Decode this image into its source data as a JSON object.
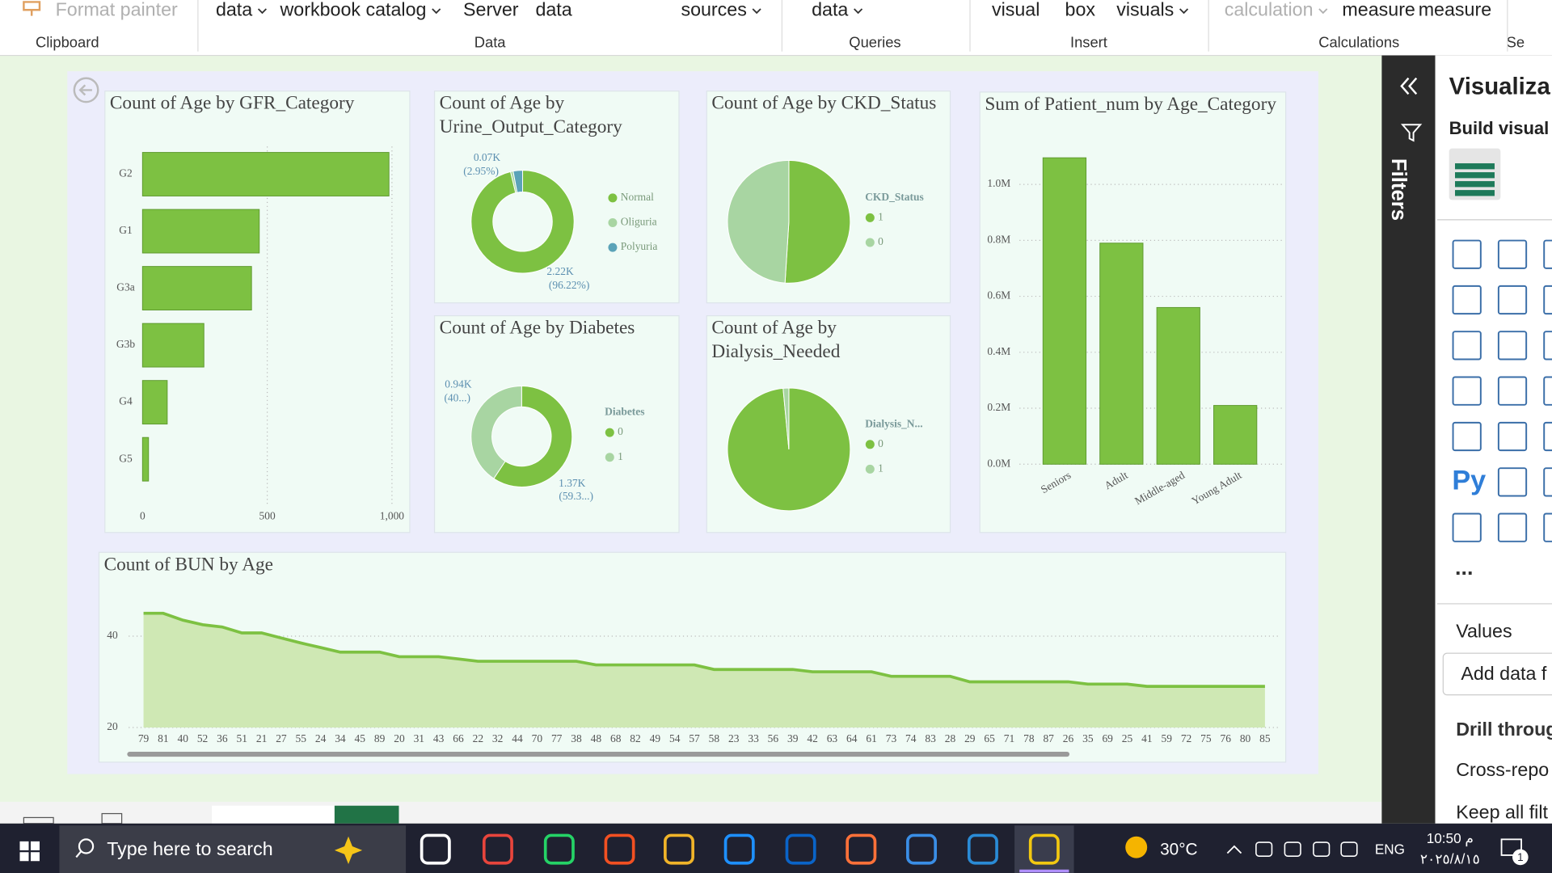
{
  "ribbon": {
    "items": [
      "Format painter",
      "data",
      "workbook catalog",
      "Server",
      "data",
      "sources",
      "data",
      "visual",
      "box",
      "visuals",
      "calculation",
      "measure",
      "measure"
    ],
    "groups": [
      "Clipboard",
      "Data",
      "Queries",
      "Insert",
      "Calculations",
      "Se"
    ]
  },
  "chart_data": [
    {
      "type": "bar",
      "orientation": "horizontal",
      "title": "Count of Age by GFR_Category",
      "categories": [
        "G2",
        "G1",
        "G3a",
        "G3b",
        "G4",
        "G5"
      ],
      "values": [
        988,
        468,
        437,
        246,
        99,
        24
      ],
      "color": "#7dc142",
      "xlim": [
        0,
        1000
      ],
      "xticks": [
        0,
        500,
        {
          "value": 1000,
          "label": "1,000"
        }
      ],
      "grid": true
    },
    {
      "type": "pie",
      "hole": true,
      "title": "Count of Age by Urine_Output_Category",
      "categories": [
        "Normal",
        "Oliguria",
        "Polyuria"
      ],
      "values": [
        2220,
        19,
        68
      ],
      "colors": [
        "#7dc142",
        "#a8d5a2",
        "#5ba3b8"
      ],
      "value_labels": [
        "2.22K",
        null,
        "0.07K"
      ],
      "percent_labels": [
        "(96.22%)",
        null,
        "(2.95%)"
      ]
    },
    {
      "type": "pie",
      "hole": false,
      "title": "Count of Age by CKD_Status",
      "legend_title": "CKD_Status",
      "categories": [
        "1",
        "0"
      ],
      "values": [
        51,
        49
      ],
      "colors": [
        "#7dc142",
        "#a8d5a2"
      ]
    },
    {
      "type": "pie",
      "hole": true,
      "title": "Count of Age by Diabetes",
      "legend_title": "Diabetes",
      "categories": [
        "0",
        "1"
      ],
      "values": [
        1370,
        940
      ],
      "colors": [
        "#7dc142",
        "#a8d5a2"
      ],
      "value_labels": [
        "1.37K",
        "0.94K"
      ],
      "percent_labels": [
        "(59.3...)",
        "(40...)"
      ]
    },
    {
      "type": "pie",
      "hole": false,
      "title": "Count of Age by Dialysis_Needed",
      "legend_title": "Dialysis_N...",
      "categories": [
        "0",
        "1"
      ],
      "values": [
        98.5,
        1.5
      ],
      "colors": [
        "#7dc142",
        "#a8d5a2"
      ]
    },
    {
      "type": "bar",
      "orientation": "vertical",
      "title": "Sum of Patient_num by Age_Category",
      "categories": [
        "Seniors",
        "Adult",
        "Middle-aged",
        "Young Adult"
      ],
      "values": [
        1095000,
        790000,
        560000,
        210000
      ],
      "color": "#7dc142",
      "ylim": [
        0,
        1100000
      ],
      "yticks": [
        {
          "value": 0,
          "label": "0.0M"
        },
        {
          "value": 200000,
          "label": "0.2M"
        },
        {
          "value": 400000,
          "label": "0.4M"
        },
        {
          "value": 600000,
          "label": "0.6M"
        },
        {
          "value": 800000,
          "label": "0.8M"
        },
        {
          "value": 1000000,
          "label": "1.0M"
        }
      ],
      "grid": true
    },
    {
      "type": "area",
      "title": "Count of BUN by Age",
      "categories": [
        "79",
        "81",
        "40",
        "52",
        "36",
        "51",
        "21",
        "27",
        "55",
        "24",
        "34",
        "45",
        "89",
        "20",
        "31",
        "43",
        "66",
        "22",
        "32",
        "44",
        "70",
        "77",
        "38",
        "48",
        "68",
        "82",
        "49",
        "54",
        "57",
        "58",
        "23",
        "33",
        "56",
        "39",
        "42",
        "63",
        "64",
        "61",
        "73",
        "74",
        "83",
        "28",
        "29",
        "65",
        "71",
        "78",
        "87",
        "26",
        "35",
        "69",
        "25",
        "41",
        "59",
        "72",
        "75",
        "76",
        "80",
        "85"
      ],
      "values": [
        45,
        45,
        43.5,
        42.5,
        42,
        40.7,
        40.7,
        39.6,
        38.5,
        37.5,
        36.5,
        36.5,
        36.5,
        35.5,
        35.5,
        35.5,
        35,
        34.5,
        34.5,
        34.5,
        34.5,
        34.5,
        34.5,
        33.7,
        33.7,
        33.7,
        33.7,
        33.7,
        33.7,
        32.7,
        32.7,
        32.7,
        32.7,
        32.7,
        32.2,
        32.2,
        32.2,
        32.2,
        31.2,
        31.2,
        31.2,
        31.2,
        30,
        30,
        30,
        30,
        30,
        30,
        29.5,
        29.5,
        29.5,
        29,
        29,
        29,
        29,
        29,
        29,
        29
      ],
      "color": "#7dc142",
      "fill": "#cfe8b4",
      "ylim": [
        20,
        46
      ],
      "yticks": [
        20,
        40
      ],
      "grid": true
    }
  ],
  "filters_pane": {
    "label": "Filters"
  },
  "visualizations_pane": {
    "title": "Visualiza",
    "build_visual": "Build visual",
    "py": "Py",
    "more": "...",
    "values": "Values",
    "add_data": "Add data f",
    "drill_through": "Drill throug",
    "cross_report": "Cross-repo",
    "keep_all_filters": "Keep all filt"
  },
  "taskbar": {
    "search": "Type here to search",
    "temperature": "30°C",
    "language": "ENG",
    "time": "10:50 م",
    "date": "٢٠٢٥/٨/١٥",
    "notifications": "1"
  }
}
